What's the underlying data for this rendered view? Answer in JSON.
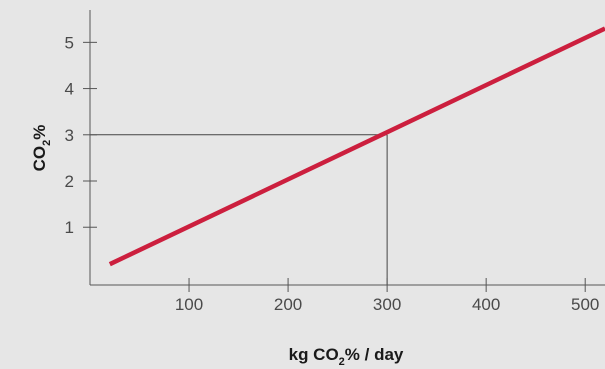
{
  "chart_data": {
    "type": "line",
    "xlabel": {
      "prefix": "kg CO",
      "sub": "2",
      "suffix": "% / day"
    },
    "ylabel": {
      "prefix": "CO",
      "sub": "2",
      "suffix": "%"
    },
    "x_ticks": [
      100,
      200,
      300,
      400,
      500
    ],
    "y_ticks": [
      1,
      2,
      3,
      4,
      5
    ],
    "xlim": [
      0,
      520
    ],
    "ylim": [
      -0.25,
      5.7
    ],
    "series": [
      {
        "x": [
          20,
          520
        ],
        "y": [
          0.2,
          5.3
        ],
        "color": "#cc1f3e"
      }
    ],
    "reference_point": {
      "x": 300,
      "y": 3
    },
    "grid": false
  },
  "colors": {
    "background": "#e6e6e6",
    "axis": "#555555",
    "series": "#cc1f3e",
    "reference": "#444444"
  }
}
